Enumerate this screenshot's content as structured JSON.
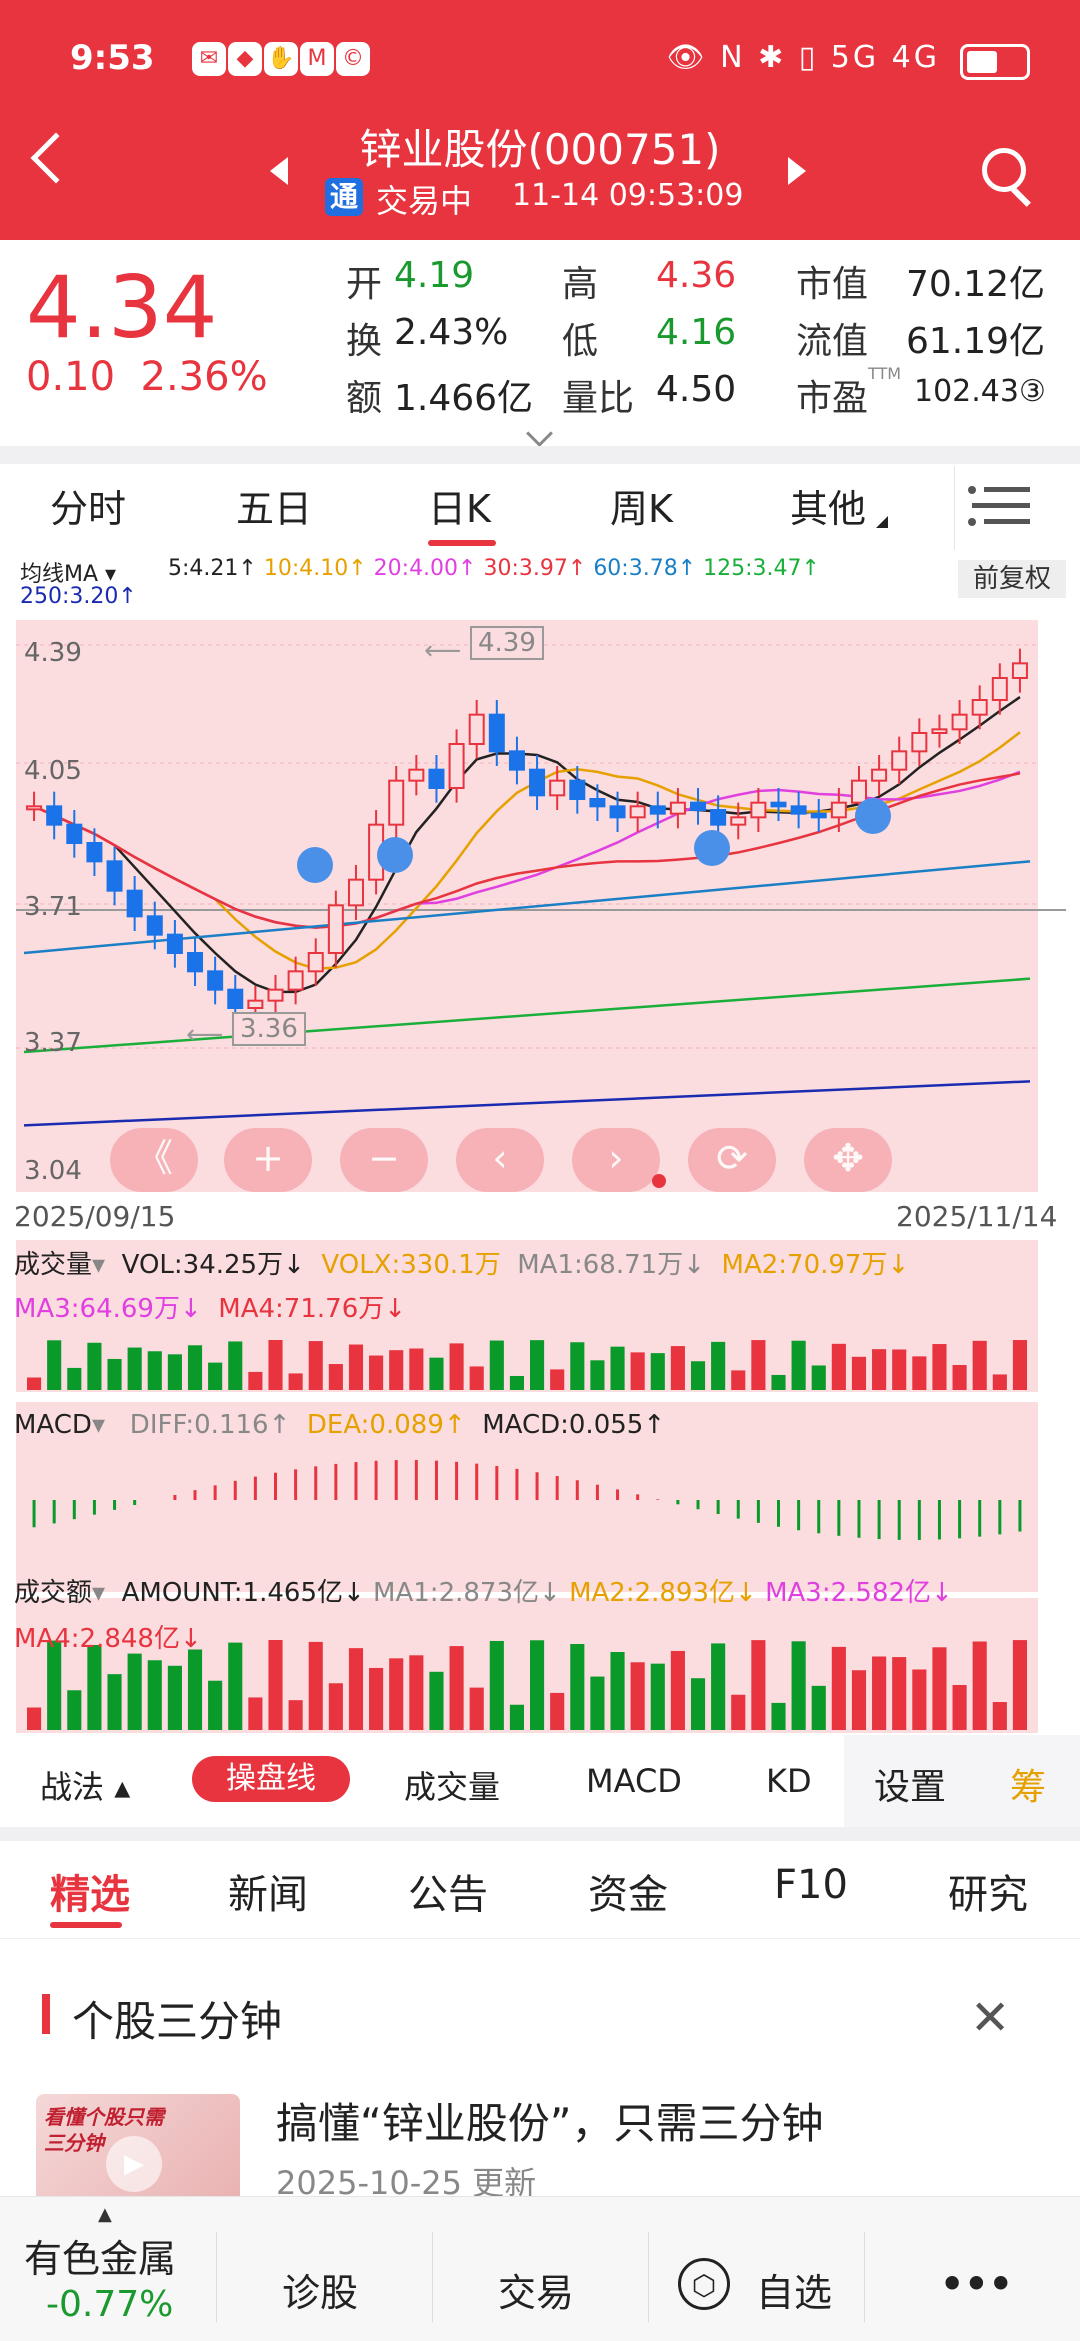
{
  "status_bar": {
    "time": "9:53",
    "indicators": "👁 N ✱ ▯ 5G 4G"
  },
  "header": {
    "stock_title": "锌业股份(000751)",
    "trade_badge": "通",
    "trade_status": "交易中",
    "trade_time": "11-14 09:53:09"
  },
  "quote": {
    "price": "4.34",
    "change": "0.10",
    "change_pct": "2.36%",
    "open_label": "开",
    "open": "4.19",
    "high_label": "高",
    "high": "4.36",
    "mktcap_label": "市值",
    "mktcap": "70.12亿",
    "turnover_label": "换",
    "turnover": "2.43%",
    "low_label": "低",
    "low": "4.16",
    "float_label": "流值",
    "float": "61.19亿",
    "amount_label": "额",
    "amount": "1.466亿",
    "volratio_label": "量比",
    "volratio": "4.50",
    "pe_label": "市盈",
    "pe_sup": "TTM",
    "pe": "102.43③"
  },
  "period_tabs": [
    "分时",
    "五日",
    "日K",
    "周K",
    "其他"
  ],
  "chart": {
    "ma_label": "均线MA",
    "ma_items": [
      {
        "text": "5:4.21↑",
        "color": "#222222"
      },
      {
        "text": "10:4.10↑",
        "color": "#e6a100"
      },
      {
        "text": "20:4.00↑",
        "color": "#e040e0"
      },
      {
        "text": "30:3.97↑",
        "color": "#e8343f"
      },
      {
        "text": "60:3.78↑",
        "color": "#1a7fc4"
      },
      {
        "text": "125:3.47↑",
        "color": "#1aae3a"
      }
    ],
    "ma250": "250:3.20↑",
    "adjust_btn": "前复权",
    "y_labels": [
      "4.39",
      "4.05",
      "3.71",
      "3.37",
      "3.04"
    ],
    "high_marker": "4.39",
    "low_marker": "3.36",
    "date_start": "2025/09/15",
    "date_end": "2025/11/14",
    "volume_legend": {
      "label": "成交量",
      "vol": "VOL:34.25万↓",
      "volx": "VOLX:330.1万",
      "ma1": "MA1:68.71万↓",
      "ma2": "MA2:70.97万↓",
      "ma3": "MA3:64.69万↓",
      "ma4": "MA4:71.76万↓"
    },
    "macd_legend": {
      "label": "MACD",
      "diff": "DIFF:0.116↑",
      "dea": "DEA:0.089↑",
      "macd": "MACD:0.055↑"
    },
    "amount_legend": {
      "label": "成交额",
      "amount": "AMOUNT:1.465亿↓",
      "ma1": "MA1:2.873亿↓",
      "ma2": "MA2:2.893亿↓",
      "ma3": "MA3:2.582亿↓",
      "ma4": "MA4:2.848亿↓"
    },
    "controls": [
      "《",
      "+",
      "−",
      "‹",
      "›",
      "⟳",
      "✥"
    ]
  },
  "indicator_tabs": {
    "strategy": "战法",
    "active": "操盘线",
    "items": [
      "成交量",
      "MACD",
      "KD"
    ],
    "settings": "设置",
    "chip": "筹"
  },
  "news_tabs": [
    "精选",
    "新闻",
    "公告",
    "资金",
    "F10",
    "研究"
  ],
  "section": {
    "title": "个股三分钟",
    "news_title": "搞懂“锌业股份”，只需三分钟",
    "news_date": "2025-10-25 更新",
    "thumb_text": "看懂个股只需三分钟"
  },
  "bottom_nav": {
    "sector": "有色金属",
    "sector_change": "-0.77%",
    "diagnose": "诊股",
    "trade": "交易",
    "watchlist": "自选",
    "more": "•••"
  },
  "colors": {
    "brand": "#e8343f",
    "up": "#e8343f",
    "down": "#1a9a2e",
    "chart_bg": "#fbdcdf"
  }
}
